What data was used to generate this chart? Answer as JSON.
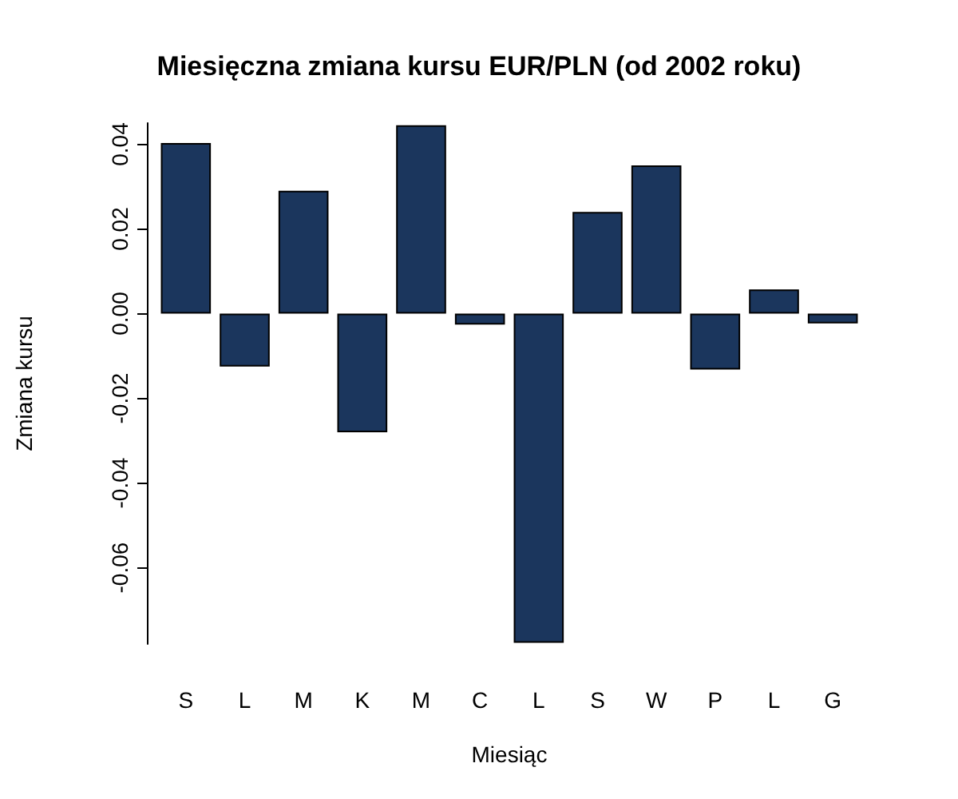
{
  "chart_data": {
    "type": "bar",
    "title": "Miesięczna zmiana kursu EUR/PLN (od 2002 roku)",
    "xlabel": "Miesiąc",
    "ylabel": "Zmiana kursu",
    "categories": [
      "S",
      "L",
      "M",
      "K",
      "M",
      "C",
      "L",
      "S",
      "W",
      "P",
      "L",
      "G"
    ],
    "values": [
      0.0403,
      -0.0125,
      0.029,
      -0.028,
      0.0445,
      -0.0026,
      -0.0777,
      0.024,
      0.035,
      -0.0132,
      0.0057,
      -0.0023
    ],
    "color": "#1b365d",
    "ylim": [
      -0.078,
      0.045
    ],
    "yticks": [
      {
        "value": -0.06,
        "label": "-0.06"
      },
      {
        "value": -0.04,
        "label": "-0.04"
      },
      {
        "value": -0.02,
        "label": "-0.02"
      },
      {
        "value": 0,
        "label": "0.00"
      },
      {
        "value": 0.02,
        "label": "0.02"
      },
      {
        "value": 0.04,
        "label": "0.04"
      }
    ],
    "grid": false
  }
}
